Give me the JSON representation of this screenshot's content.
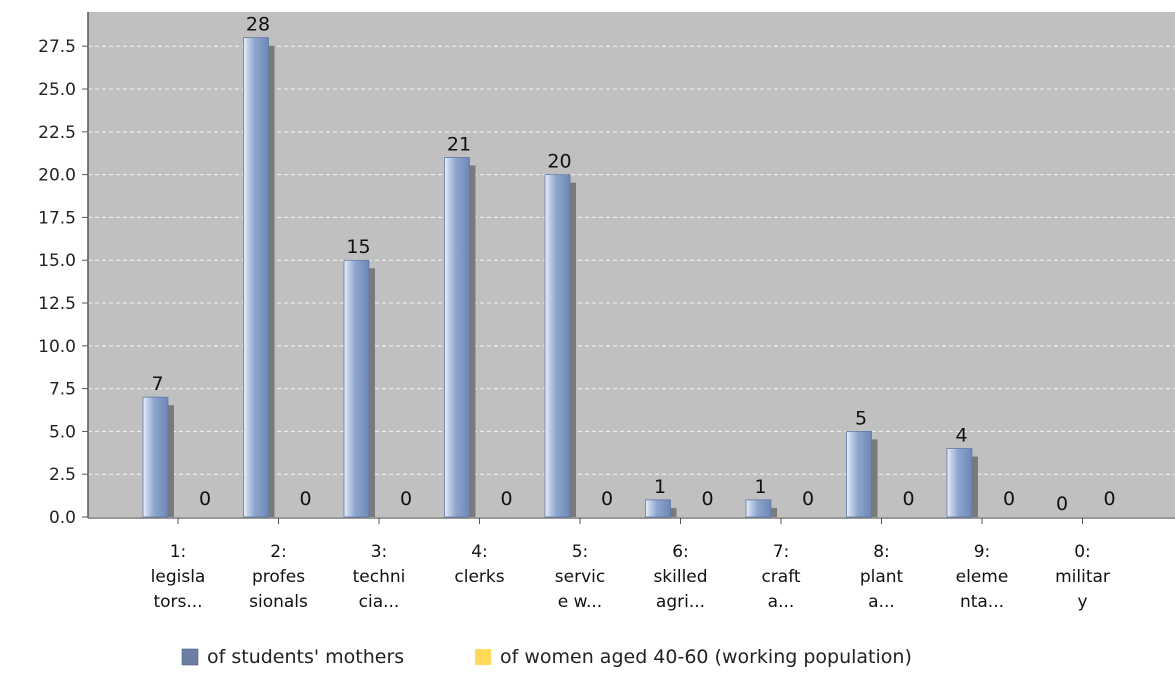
{
  "chart_data": {
    "type": "bar",
    "ylim": [
      0,
      29.5
    ],
    "yticks": [
      "0.0",
      "2.5",
      "5.0",
      "7.5",
      "10.0",
      "12.5",
      "15.0",
      "17.5",
      "20.0",
      "22.5",
      "25.0",
      "27.5"
    ],
    "grid": true,
    "legend_position": "bottom",
    "categories": [
      {
        "lines": [
          "1:",
          "legisla",
          "tors..."
        ]
      },
      {
        "lines": [
          "2:",
          "profes",
          "sionals"
        ]
      },
      {
        "lines": [
          "3:",
          "techni",
          "cia..."
        ]
      },
      {
        "lines": [
          "4:",
          "clerks"
        ]
      },
      {
        "lines": [
          "5:",
          "servic",
          "e w..."
        ]
      },
      {
        "lines": [
          "6:",
          "skilled",
          "agri..."
        ]
      },
      {
        "lines": [
          "7:",
          "craft",
          "a..."
        ]
      },
      {
        "lines": [
          "8:",
          "plant",
          "a..."
        ]
      },
      {
        "lines": [
          "9:",
          "eleme",
          "nta..."
        ]
      },
      {
        "lines": [
          "0:",
          "militar",
          "y"
        ]
      }
    ],
    "series": [
      {
        "name": "of students' mothers",
        "color": "#7f9bc7",
        "values": [
          7,
          28,
          15,
          21,
          20,
          1,
          1,
          5,
          4,
          0
        ],
        "labels": [
          "7",
          "28",
          "15",
          "21",
          "20",
          "1",
          "1",
          "5",
          "4",
          "0"
        ]
      },
      {
        "name": "of women aged 40-60 (working population)",
        "color": "#ffdc5a",
        "values": [
          0,
          0,
          0,
          0,
          0,
          0,
          0,
          0,
          0,
          0
        ],
        "labels": [
          "0",
          "0",
          "0",
          "0",
          "0",
          "0",
          "0",
          "0",
          "0",
          "0"
        ]
      }
    ],
    "legend_colors": [
      "#6a7fa3",
      "#ffd957"
    ],
    "plot_background": "#c0c0c0"
  }
}
